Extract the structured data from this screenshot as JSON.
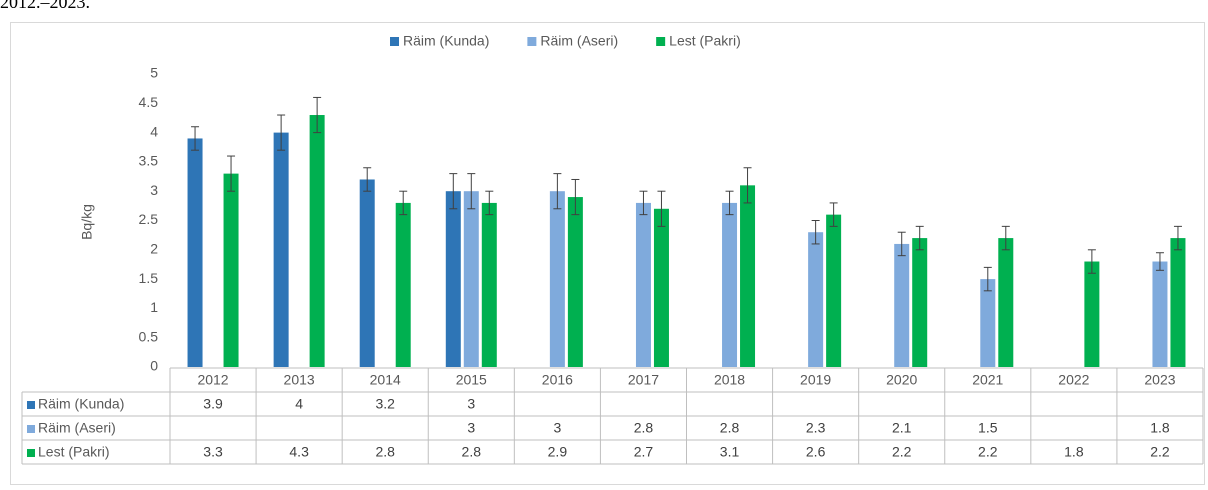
{
  "caption": "2012.–2023.",
  "chart_data": {
    "type": "bar",
    "y_label": "Bq/kg",
    "categories": [
      "2012",
      "2013",
      "2014",
      "2015",
      "2016",
      "2017",
      "2018",
      "2019",
      "2020",
      "2021",
      "2022",
      "2023"
    ],
    "series": [
      {
        "name": "Räim (Kunda)",
        "color": "#2e75b6",
        "values": [
          3.9,
          4,
          3.2,
          3,
          null,
          null,
          null,
          null,
          null,
          null,
          null,
          null
        ],
        "errors": [
          0.2,
          0.3,
          0.2,
          0.3,
          null,
          null,
          null,
          null,
          null,
          null,
          null,
          null
        ]
      },
      {
        "name": "Räim (Aseri)",
        "color": "#7faadc",
        "values": [
          null,
          null,
          null,
          3,
          3,
          2.8,
          2.8,
          2.3,
          2.1,
          1.5,
          null,
          1.8
        ],
        "errors": [
          null,
          null,
          null,
          0.3,
          0.3,
          0.2,
          0.2,
          0.2,
          0.2,
          0.2,
          null,
          0.15
        ]
      },
      {
        "name": "Lest (Pakri)",
        "color": "#00b050",
        "values": [
          3.3,
          4.3,
          2.8,
          2.8,
          2.9,
          2.7,
          3.1,
          2.6,
          2.2,
          2.2,
          1.8,
          2.2
        ],
        "errors": [
          0.3,
          0.3,
          0.2,
          0.2,
          0.3,
          0.3,
          0.3,
          0.2,
          0.2,
          0.2,
          0.2,
          0.2
        ]
      }
    ],
    "ylim": [
      0,
      5
    ],
    "yticks": [
      0,
      0.5,
      1,
      1.5,
      2,
      2.5,
      3,
      3.5,
      4,
      4.5,
      5
    ],
    "grid": false,
    "legend": "top",
    "data_table": true
  }
}
